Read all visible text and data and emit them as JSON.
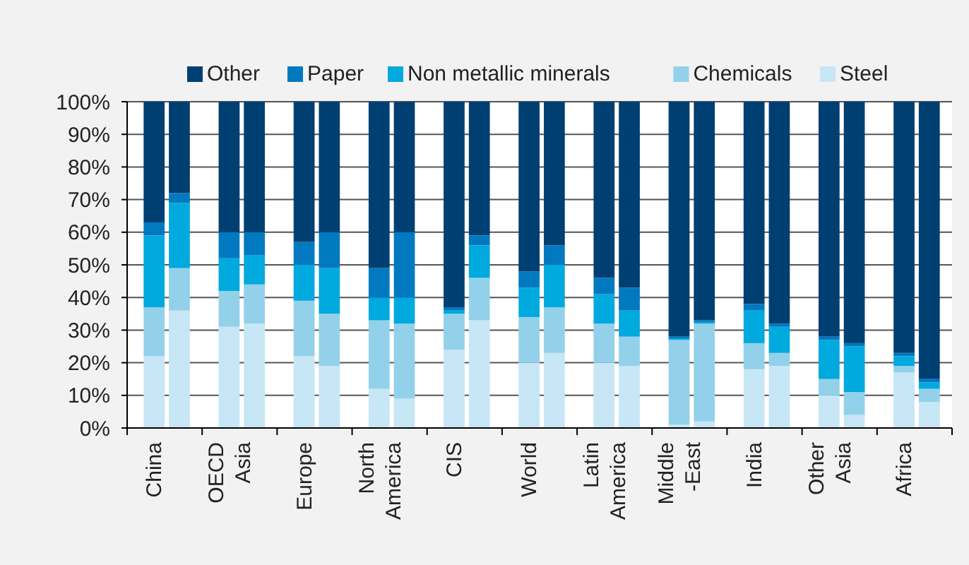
{
  "chart_data": {
    "type": "bar",
    "stacked": true,
    "legend": "top",
    "grid": "y",
    "categories": [
      "China",
      null,
      "OECD\nAsia",
      null,
      "Europe",
      null,
      "North\nAmerica",
      null,
      "CIS",
      null,
      "World",
      null,
      "Latin\nAmerica",
      null,
      "Middle\n-East",
      null,
      "India",
      null,
      "Other\nAsia",
      null,
      "Africa",
      null
    ],
    "ylim": [
      0,
      100
    ],
    "yticks": [
      {
        "value": 0,
        "label": "0%"
      },
      {
        "value": 10,
        "label": "10%"
      },
      {
        "value": 20,
        "label": "20%"
      },
      {
        "value": 30,
        "label": "30%"
      },
      {
        "value": 40,
        "label": "40%"
      },
      {
        "value": 50,
        "label": "50%"
      },
      {
        "value": 60,
        "label": "60%"
      },
      {
        "value": 70,
        "label": "70%"
      },
      {
        "value": 80,
        "label": "80%"
      },
      {
        "value": 90,
        "label": "90%"
      },
      {
        "value": 100,
        "label": "100%"
      }
    ],
    "series": [
      {
        "name": "Steel",
        "color": "#c7e6f6",
        "values": [
          22,
          36,
          31,
          32,
          22,
          19,
          12,
          9,
          24,
          33,
          20,
          23,
          20,
          19,
          1,
          2,
          18,
          19,
          10,
          4,
          17,
          8
        ]
      },
      {
        "name": "Chemicals",
        "color": "#93d1ea",
        "values": [
          15,
          13,
          11,
          12,
          17,
          16,
          21,
          23,
          11,
          13,
          14,
          14,
          12,
          9,
          26,
          30,
          8,
          4,
          5,
          7,
          2,
          4
        ]
      },
      {
        "name": "Non metallic minerals",
        "color": "#00a9de",
        "values": [
          22,
          20,
          10,
          9,
          11,
          14,
          7,
          8,
          1,
          10,
          9,
          13,
          9,
          8,
          0.5,
          0.5,
          10,
          8,
          12,
          14,
          3,
          2
        ]
      },
      {
        "name": "Paper",
        "color": "#0079c1",
        "values": [
          4,
          3,
          8,
          7,
          7,
          11,
          9,
          20,
          1,
          3,
          5,
          6,
          5,
          7,
          0.5,
          0.5,
          2,
          1,
          1,
          1,
          1,
          1
        ]
      },
      {
        "name": "Other",
        "color": "#003f72",
        "values": [
          37,
          28,
          40,
          40,
          43,
          40,
          51,
          40,
          63,
          41,
          52,
          44,
          54,
          57,
          72,
          67,
          62,
          68,
          72,
          74,
          77,
          85
        ]
      }
    ]
  }
}
